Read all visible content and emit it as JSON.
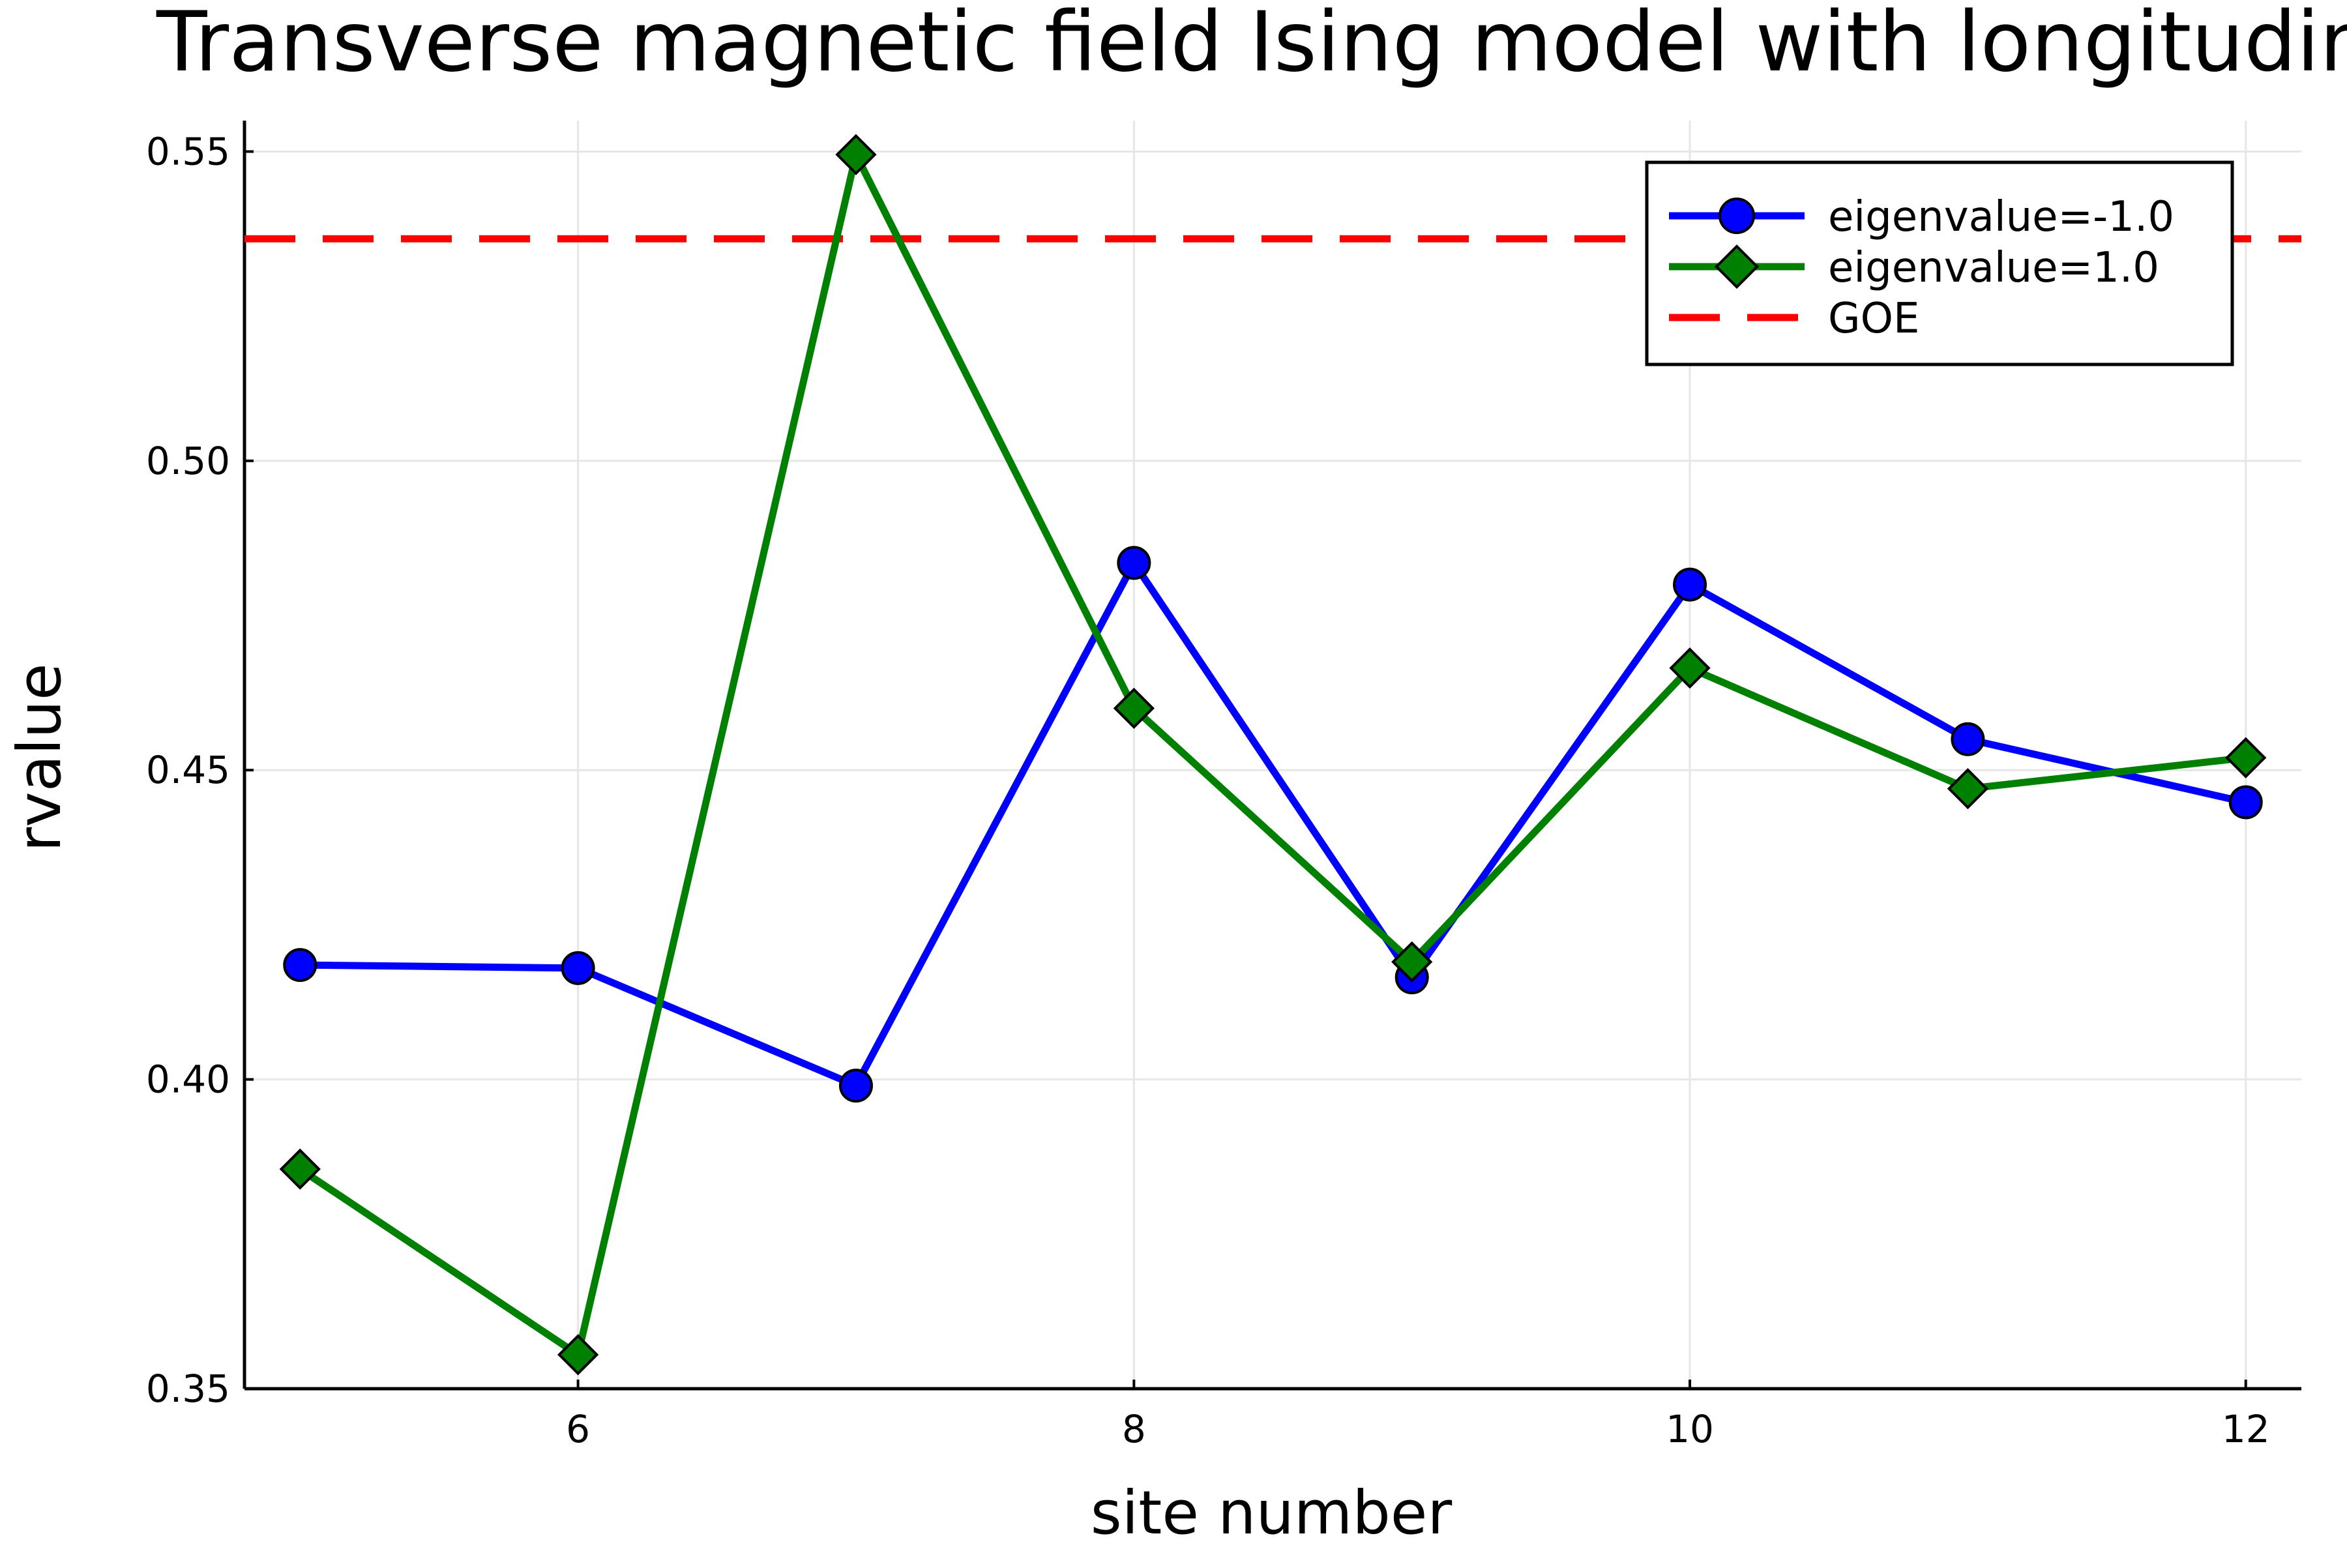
{
  "chart_data": {
    "type": "line",
    "title": "Transverse magnetic field Ising model with longitudinal field",
    "xlabel": "site number",
    "ylabel": "rvalue",
    "xlim": [
      4.8,
      12.2
    ],
    "ylim": [
      0.35,
      0.555
    ],
    "xticks": [
      6,
      8,
      10,
      12
    ],
    "xtick_labels": [
      "6",
      "8",
      "10",
      "12"
    ],
    "yticks": [
      0.35,
      0.4,
      0.45,
      0.5,
      0.55
    ],
    "ytick_labels": [
      "0.35",
      "0.40",
      "0.45",
      "0.50",
      "0.55"
    ],
    "grid": true,
    "legend_position": "top-right",
    "x": [
      5,
      6,
      7,
      8,
      9,
      10,
      11,
      12
    ],
    "series": [
      {
        "name": "eigenvalue=-1.0",
        "color": "#0000ff",
        "marker": "circle",
        "values": [
          0.4185,
          0.418,
          0.399,
          0.4835,
          0.4165,
          0.48,
          0.455,
          0.4448
        ]
      },
      {
        "name": "eigenvalue=1.0",
        "color": "#008000",
        "marker": "diamond",
        "values": [
          0.3855,
          0.3555,
          0.5495,
          0.46,
          0.419,
          0.4665,
          0.447,
          0.452
        ]
      }
    ],
    "reference_lines": [
      {
        "name": "GOE",
        "y": 0.5359,
        "color": "#ff0000",
        "style": "dashed"
      }
    ]
  }
}
